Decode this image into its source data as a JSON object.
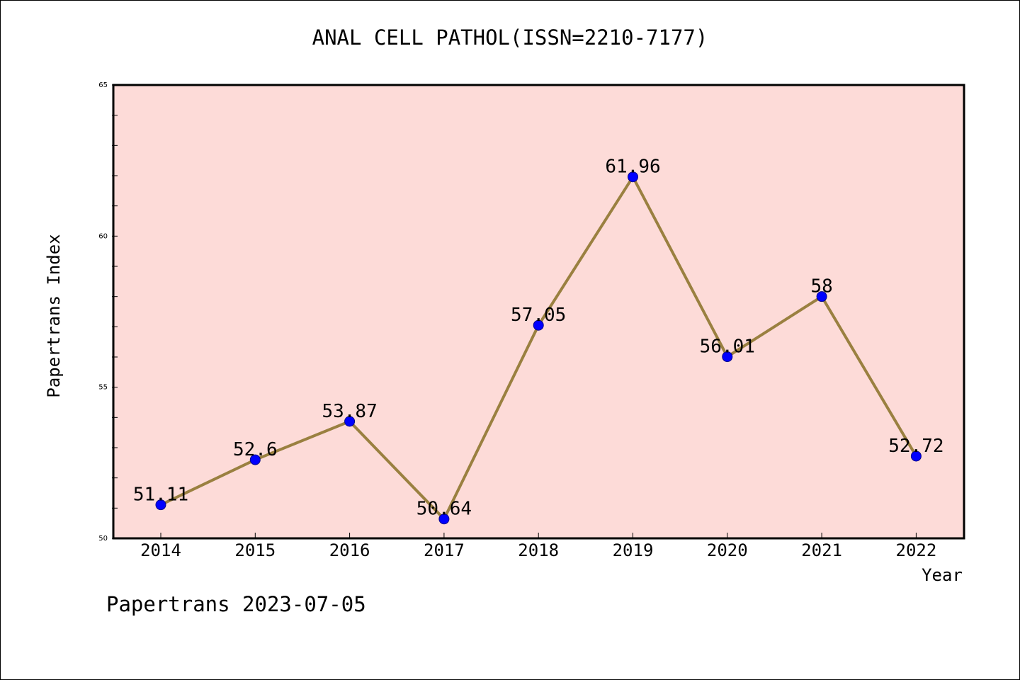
{
  "chart_data": {
    "type": "line",
    "title": "ANAL CELL PATHOL(ISSN=2210-7177)",
    "xlabel": "Year",
    "ylabel": "Papertrans Index",
    "x": [
      "2014",
      "2015",
      "2016",
      "2017",
      "2018",
      "2019",
      "2020",
      "2021",
      "2022"
    ],
    "values": [
      51.11,
      52.6,
      53.87,
      50.64,
      57.05,
      61.96,
      56.01,
      58,
      52.72
    ],
    "data_labels": [
      "51.11",
      "52.6",
      "53.87",
      "50.64",
      "57.05",
      "61.96",
      "56.01",
      "58",
      "52.72"
    ],
    "ylim": [
      50,
      65
    ],
    "y_ticks": [
      50,
      55,
      60,
      65
    ],
    "grid": false,
    "colors": {
      "plot_background": "#fddbd8",
      "line": "#9a8040",
      "marker": "#0000ff"
    }
  },
  "footer": "Papertrans 2023-07-05"
}
